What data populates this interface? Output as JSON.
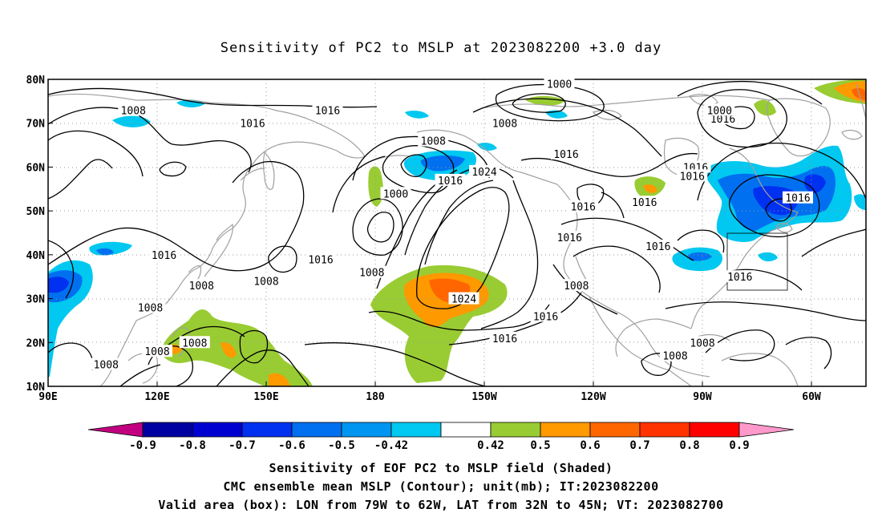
{
  "title": "Sensitivity of PC2 to MSLP at 2023082200 +3.0 day",
  "lat_labels": [
    "80N",
    "70N",
    "60N",
    "50N",
    "40N",
    "30N",
    "20N",
    "10N"
  ],
  "lon_labels": [
    "90E",
    "120E",
    "150E",
    "180",
    "150W",
    "120W",
    "90W",
    "60W"
  ],
  "contour_labels": [
    {
      "text": "1016",
      "lon": -188,
      "lat": 73
    },
    {
      "text": "1016",
      "lon": -118,
      "lat": 63
    },
    {
      "text": "1016",
      "lon": -152,
      "lat": 57
    },
    {
      "text": "1016",
      "lon": -80,
      "lat": 60
    },
    {
      "text": "1016",
      "lon": -72,
      "lat": 71
    },
    {
      "text": "1016",
      "lon": -50,
      "lat": 53
    },
    {
      "text": "1016",
      "lon": -91,
      "lat": 42
    },
    {
      "text": "1016",
      "lon": -81,
      "lat": 58
    },
    {
      "text": "1016",
      "lon": -124,
      "lat": 26
    },
    {
      "text": "1016",
      "lon": -113,
      "lat": 51
    },
    {
      "text": "1016",
      "lon": -136,
      "lat": 21
    },
    {
      "text": "1016",
      "lon": -67,
      "lat": 35
    },
    {
      "text": "1008",
      "lon": -157,
      "lat": 66
    },
    {
      "text": "1008",
      "lon": -136,
      "lat": 70
    },
    {
      "text": "1008",
      "lon": -245,
      "lat": 73
    },
    {
      "text": "1008",
      "lon": -206,
      "lat": 34
    },
    {
      "text": "1008",
      "lon": -175,
      "lat": 36
    },
    {
      "text": "1008",
      "lon": -115,
      "lat": 33
    },
    {
      "text": "1008",
      "lon": -86,
      "lat": 17
    },
    {
      "text": "1008",
      "lon": -78,
      "lat": 20
    },
    {
      "text": "1008",
      "lon": -238,
      "lat": 18
    },
    {
      "text": "1000",
      "lon": -168,
      "lat": 54
    },
    {
      "text": "1000",
      "lon": -120,
      "lat": 79
    },
    {
      "text": "1000",
      "lon": -73,
      "lat": 73
    },
    {
      "text": "1024",
      "lon": -148,
      "lat": 30
    },
    {
      "text": "1024",
      "lon": -142,
      "lat": 59
    }
  ],
  "fix_labels": [
    {
      "text": "1016",
      "lon": -236,
      "lat": 40
    },
    {
      "text": "1016",
      "lon": -210,
      "lat": 70
    },
    {
      "text": "1016",
      "lon": -190,
      "lat": 39
    },
    {
      "text": "1008",
      "lon": -225,
      "lat": 33
    },
    {
      "text": "1008",
      "lon": -240,
      "lat": 28
    },
    {
      "text": "1008",
      "lon": -227,
      "lat": 20
    },
    {
      "text": "1008",
      "lon": -253,
      "lat": 15
    },
    {
      "text": "1016",
      "lon": -95,
      "lat": 52
    },
    {
      "text": "1016",
      "lon": -117,
      "lat": 44
    }
  ],
  "colorbar": {
    "labels": [
      "-0.9",
      "-0.8",
      "-0.7",
      "-0.6",
      "-0.5",
      "-0.42",
      "0.42",
      "0.5",
      "0.6",
      "0.7",
      "0.8",
      "0.9"
    ],
    "colors": [
      "#c0007f",
      "#0000a0",
      "#0000d0",
      "#0030f0",
      "#0070f0",
      "#0095f0",
      "#00c8f0",
      "#ffffff",
      "#99cc33",
      "#ff9900",
      "#ff6600",
      "#ff3300",
      "#ff0000",
      "#ff99cc"
    ]
  },
  "footer": {
    "line1": "Sensitivity of EOF PC2 to MSLP field (Shaded)",
    "line2": "CMC ensemble mean MSLP (Contour); unit(mb); IT:2023082200",
    "line3": "Valid area (box): LON from 79W to 62W, LAT from 32N to 45N; VT: 2023082700"
  },
  "valid_box": {
    "lon_min": -79,
    "lon_max": -62,
    "lat_min": 32,
    "lat_max": 45
  }
}
